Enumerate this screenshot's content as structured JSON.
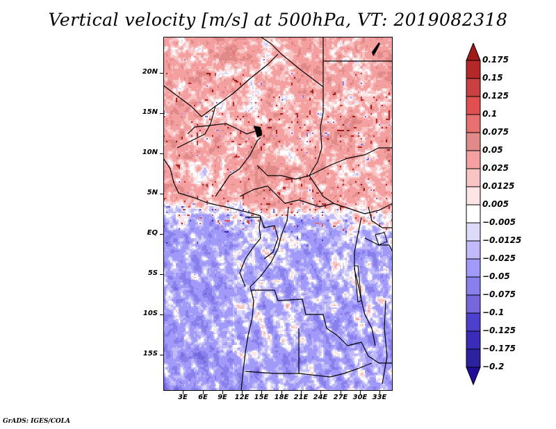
{
  "title": "Vertical velocity [m/s] at 500hPa, VT: 2019082318",
  "footer": "GrADS: IGES/COLA",
  "map": {
    "variable": "Vertical velocity",
    "units": "m/s",
    "level": "500hPa",
    "valid_time": "2019082318",
    "lat_range": [
      -19.5,
      24.5
    ],
    "lon_range": [
      0,
      35
    ],
    "lat_ticks": [
      "20N",
      "15N",
      "10N",
      "5N",
      "EQ",
      "5S",
      "10S",
      "15S"
    ],
    "lat_tick_values": [
      20,
      15,
      10,
      5,
      0,
      -5,
      -10,
      -15
    ],
    "lon_ticks": [
      "3E",
      "6E",
      "9E",
      "12E",
      "15E",
      "18E",
      "21E",
      "24E",
      "27E",
      "30E",
      "33E"
    ],
    "lon_tick_values": [
      3,
      6,
      9,
      12,
      15,
      18,
      21,
      24,
      27,
      30,
      33
    ]
  },
  "colorbar": {
    "labels": [
      "0.175",
      "0.15",
      "0.125",
      "0.1",
      "0.075",
      "0.05",
      "0.025",
      "0.0125",
      "0.005",
      "−0.005",
      "−0.0125",
      "−0.025",
      "−0.05",
      "−0.075",
      "−0.1",
      "−0.125",
      "−0.175",
      "−0.2"
    ],
    "levels": [
      0.175,
      0.15,
      0.125,
      0.1,
      0.075,
      0.05,
      0.025,
      0.0125,
      0.005,
      -0.005,
      -0.0125,
      -0.025,
      -0.05,
      -0.075,
      -0.1,
      -0.125,
      -0.175,
      -0.2
    ],
    "colors_top_to_bottom": [
      "#a01a1a",
      "#b52828",
      "#c94040",
      "#e05050",
      "#e87070",
      "#e08a8a",
      "#f4a0a0",
      "#f8c4c4",
      "#fce4e4",
      "#ffffff",
      "#dcdcfa",
      "#c0bafa",
      "#a29af8",
      "#8a80ec",
      "#7468dc",
      "#4c40cc",
      "#3a2cb8",
      "#2c22a0",
      "#200c9a"
    ]
  },
  "chart_data": {
    "type": "heatmap",
    "title": "Vertical velocity [m/s] at 500hPa, VT: 2019082318",
    "xlabel": "",
    "ylabel": "",
    "x_ticks": [
      "3E",
      "6E",
      "9E",
      "12E",
      "15E",
      "18E",
      "21E",
      "24E",
      "27E",
      "30E",
      "33E"
    ],
    "y_ticks": [
      "20N",
      "15N",
      "10N",
      "5N",
      "EQ",
      "5S",
      "10S",
      "15S"
    ],
    "xlim": [
      0,
      35
    ],
    "ylim": [
      -19.5,
      24.5
    ],
    "color_levels": [
      -0.2,
      -0.175,
      -0.125,
      -0.1,
      -0.075,
      -0.05,
      -0.025,
      -0.0125,
      -0.005,
      0.005,
      0.0125,
      0.025,
      0.05,
      0.075,
      0.1,
      0.125,
      0.15,
      0.175
    ],
    "legend": "right",
    "description": "Positive (red) vertical velocity dominates north of ~3N over Sahel/Central Africa; negative (blue) dominates over the southern Atlantic and southern Africa."
  }
}
